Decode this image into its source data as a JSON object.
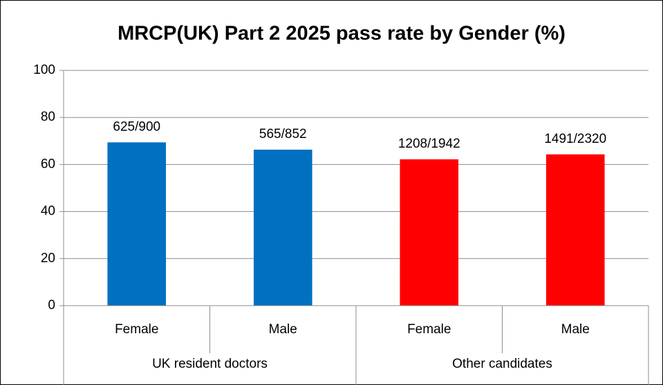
{
  "chart_data": {
    "type": "bar",
    "title": "MRCP(UK) Part 2 2025 pass rate by Gender (%)",
    "groups": [
      {
        "name": "UK resident doctors",
        "color": "#0070c0",
        "categories": [
          "Female",
          "Male"
        ],
        "values": [
          69.4,
          66.3
        ],
        "value_labels": [
          "625/900",
          "565/852"
        ]
      },
      {
        "name": "Other candidates",
        "color": "#ff0000",
        "categories": [
          "Female",
          "Male"
        ],
        "values": [
          62.2,
          64.3
        ],
        "value_labels": [
          "1208/1942",
          "1491/2320"
        ]
      }
    ],
    "ylim": [
      0,
      100
    ],
    "yticks": [
      0,
      20,
      40,
      60,
      80,
      100
    ],
    "grid": true
  }
}
